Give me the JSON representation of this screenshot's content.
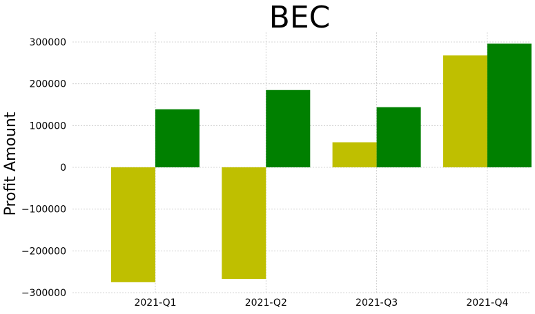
{
  "chart_data": {
    "type": "bar",
    "title": "BEC",
    "xlabel": "",
    "ylabel": "Profit Amount",
    "categories": [
      "2021-Q1",
      "2021-Q2",
      "2021-Q3",
      "2021-Q4"
    ],
    "series": [
      {
        "values": [
          -275000,
          -267000,
          60000,
          268000
        ],
        "color": "#bfbf00"
      },
      {
        "values": [
          139000,
          185000,
          144000,
          296000
        ],
        "color": "#008000"
      }
    ],
    "ylim": [
      -300000,
      300000
    ],
    "yticks": [
      -300000,
      -200000,
      -100000,
      0,
      100000,
      200000,
      300000
    ],
    "ytick_labels": [
      "−300000",
      "−200000",
      "−100000",
      "0",
      "100000",
      "200000",
      "300000"
    ],
    "grid": true,
    "legend": "none"
  }
}
